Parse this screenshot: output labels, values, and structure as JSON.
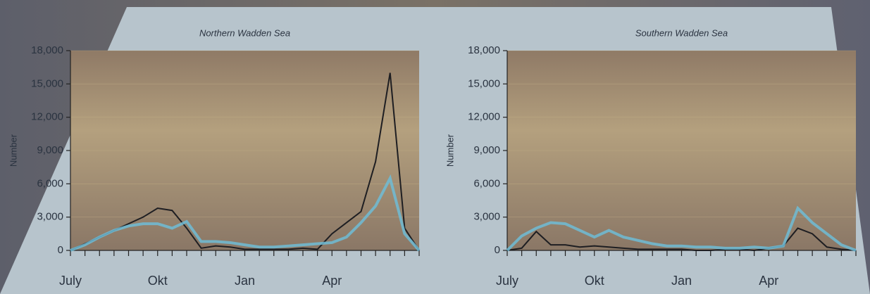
{
  "chart_data": [
    {
      "type": "line",
      "title": "Northern Wadden Sea",
      "ylabel": "Number",
      "categories": [
        "July",
        null,
        null,
        null,
        null,
        null,
        "Okt",
        null,
        null,
        null,
        null,
        null,
        "Jan",
        null,
        null,
        null,
        null,
        null,
        "Apr",
        null,
        null,
        null,
        null,
        null,
        null
      ],
      "series": [
        {
          "color": "#1e1e22",
          "values": [
            0,
            600,
            1200,
            1800,
            2400,
            3000,
            3800,
            3600,
            2000,
            200,
            400,
            300,
            100,
            100,
            100,
            100,
            200,
            100,
            1500,
            2500,
            3500,
            8000,
            16000,
            2000,
            0
          ]
        },
        {
          "color": "#6fbcd6",
          "values": [
            0,
            500,
            1200,
            1800,
            2200,
            2400,
            2400,
            2000,
            2600,
            800,
            800,
            700,
            500,
            300,
            300,
            400,
            500,
            600,
            700,
            1200,
            2500,
            4000,
            6500,
            1500,
            0
          ]
        }
      ],
      "ylim": [
        0,
        18000
      ],
      "yticks": [
        0,
        {
          "value": 3000,
          "label": "3,000"
        },
        {
          "value": 6000,
          "label": "6,000"
        },
        {
          "value": 9000,
          "label": "9,000"
        },
        {
          "value": 12000,
          "label": "12,000"
        },
        {
          "value": 15000,
          "label": "15,000"
        },
        {
          "value": 18000,
          "label": "18,000"
        }
      ]
    },
    {
      "type": "line",
      "title": "Southern Wadden Sea",
      "ylabel": "Number",
      "categories": [
        "July",
        null,
        null,
        null,
        null,
        null,
        "Okt",
        null,
        null,
        null,
        null,
        null,
        "Jan",
        null,
        null,
        null,
        null,
        null,
        "Apr",
        null,
        null,
        null,
        null,
        null,
        null
      ],
      "series": [
        {
          "color": "#1e1e22",
          "values": [
            0,
            200,
            1700,
            500,
            500,
            300,
            400,
            300,
            200,
            100,
            100,
            100,
            100,
            0,
            0,
            100,
            100,
            0,
            200,
            400,
            2000,
            1500,
            300,
            100,
            0
          ]
        },
        {
          "color": "#6fbcd6",
          "values": [
            0,
            1300,
            2000,
            2500,
            2400,
            1800,
            1200,
            1800,
            1200,
            900,
            600,
            400,
            400,
            300,
            300,
            200,
            200,
            300,
            200,
            400,
            3800,
            2500,
            1500,
            500,
            0
          ]
        }
      ],
      "ylim": [
        0,
        18000
      ],
      "yticks": [
        0,
        {
          "value": 3000,
          "label": "3,000"
        },
        {
          "value": 6000,
          "label": "6,000"
        },
        {
          "value": 9000,
          "label": "9,000"
        },
        {
          "value": 12000,
          "label": "12,000"
        },
        {
          "value": 15000,
          "label": "15,000"
        },
        {
          "value": 18000,
          "label": "18,000"
        }
      ]
    }
  ]
}
